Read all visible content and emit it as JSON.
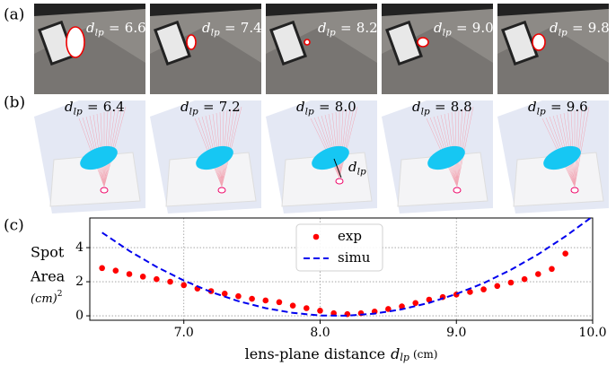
{
  "panel_a": {
    "label": "(a)",
    "images": [
      {
        "variable": "d",
        "subscript": "lp",
        "operator": "=",
        "value": "6.6"
      },
      {
        "variable": "d",
        "subscript": "lp",
        "operator": "=",
        "value": "7.4"
      },
      {
        "variable": "d",
        "subscript": "lp",
        "operator": "=",
        "value": "8.2"
      },
      {
        "variable": "d",
        "subscript": "lp",
        "operator": "=",
        "value": "9.0"
      },
      {
        "variable": "d",
        "subscript": "lp",
        "operator": "=",
        "value": "9.8"
      }
    ]
  },
  "panel_b": {
    "label": "(b)",
    "images": [
      {
        "variable": "d",
        "subscript": "lp",
        "operator": "=",
        "value": "6.4"
      },
      {
        "variable": "d",
        "subscript": "lp",
        "operator": "=",
        "value": "7.2"
      },
      {
        "variable": "d",
        "subscript": "lp",
        "operator": "=",
        "value": "8.0"
      },
      {
        "variable": "d",
        "subscript": "lp",
        "operator": "=",
        "value": "8.8"
      },
      {
        "variable": "d",
        "subscript": "lp",
        "operator": "=",
        "value": "9.6"
      }
    ],
    "annotation": {
      "variable": "d",
      "subscript": "lp"
    }
  },
  "chart_data": {
    "type": "scatter-line",
    "panel_label": "(c)",
    "xlabel": {
      "text": "lens-plane distance",
      "variable": "d",
      "subscript": "lp",
      "unit": "(cm)"
    },
    "ylabel": {
      "lines": [
        "Spot",
        "Area"
      ],
      "unit": "(cm)",
      "exponent": "2"
    },
    "xlim": [
      6.31,
      10.0
    ],
    "ylim": [
      -0.26,
      5.74
    ],
    "xticks": [
      {
        "value": 7.0,
        "label": "7.0"
      },
      {
        "value": 8.0,
        "label": "8.0"
      },
      {
        "value": 9.0,
        "label": "9.0"
      },
      {
        "value": 10.0,
        "label": "10.0"
      }
    ],
    "yticks": [
      0,
      2,
      4
    ],
    "grid": true,
    "legend": "top-center",
    "series": [
      {
        "name": "exp",
        "color": "#ff0000",
        "style": "markers",
        "x": [
          6.4,
          6.5,
          6.6,
          6.7,
          6.8,
          6.9,
          7.0,
          7.1,
          7.2,
          7.3,
          7.4,
          7.5,
          7.6,
          7.7,
          7.8,
          7.9,
          8.0,
          8.1,
          8.2,
          8.3,
          8.4,
          8.5,
          8.6,
          8.7,
          8.8,
          8.9,
          9.0,
          9.1,
          9.2,
          9.3,
          9.4,
          9.5,
          9.6,
          9.7,
          9.8
        ],
        "values": [
          2.8,
          2.65,
          2.45,
          2.3,
          2.15,
          2.0,
          1.8,
          1.6,
          1.45,
          1.3,
          1.15,
          1.0,
          0.9,
          0.8,
          0.6,
          0.45,
          0.3,
          0.15,
          0.1,
          0.15,
          0.25,
          0.4,
          0.55,
          0.75,
          0.95,
          1.1,
          1.25,
          1.4,
          1.55,
          1.75,
          1.95,
          2.15,
          2.45,
          2.75,
          3.65
        ]
      },
      {
        "name": "simu",
        "color": "#0000ee",
        "style": "dashed",
        "x": [
          6.4,
          6.6,
          6.8,
          7.0,
          7.2,
          7.4,
          7.6,
          7.8,
          8.0,
          8.2,
          8.4,
          8.6,
          8.8,
          9.0,
          9.2,
          9.4,
          9.6,
          9.8,
          10.0
        ],
        "values": [
          4.88,
          3.81,
          2.87,
          2.07,
          1.4,
          0.86,
          0.45,
          0.17,
          0.02,
          0.01,
          0.13,
          0.38,
          0.76,
          1.28,
          1.92,
          2.7,
          3.61,
          4.66,
          5.83
        ]
      }
    ]
  }
}
